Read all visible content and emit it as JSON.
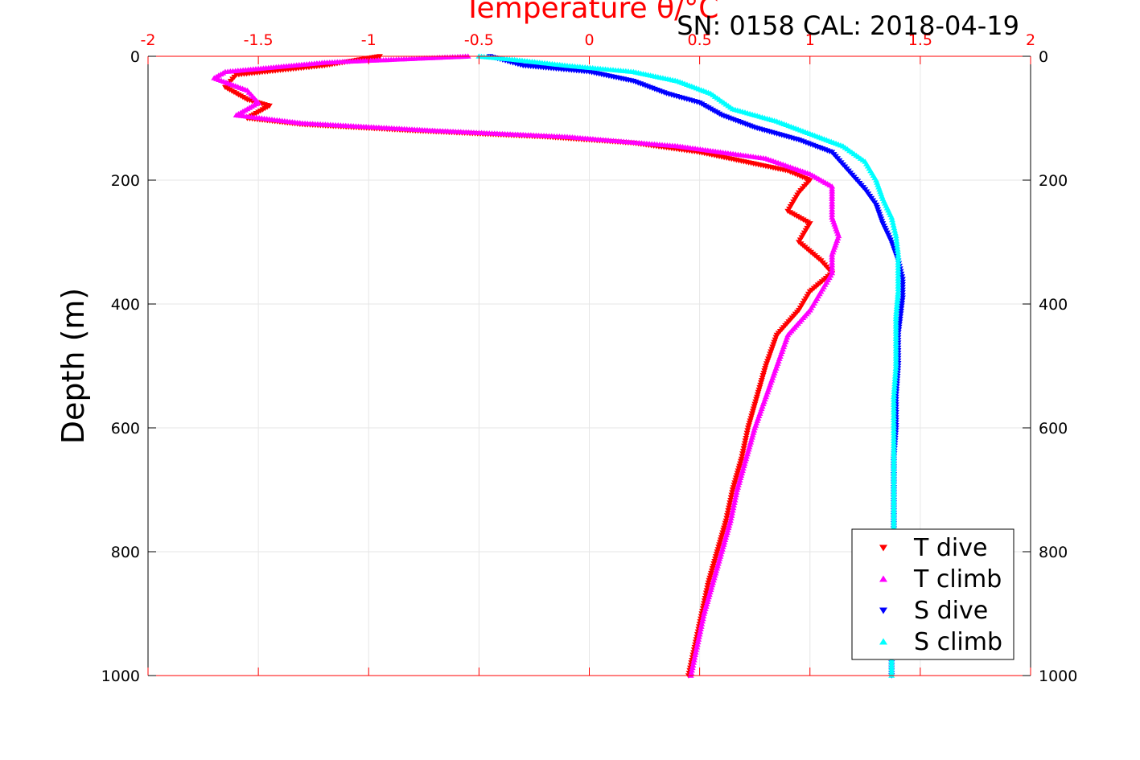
{
  "chart_data": {
    "type": "scatter",
    "title": "Temperature θ/°C",
    "info_text": "SN: 0158  CAL: 2018-04-19",
    "xlabel": "Temperature θ/°C",
    "ylabel": "Depth (m)",
    "xlim": [
      -2,
      2
    ],
    "ylim": [
      0,
      1000
    ],
    "y_reversed": true,
    "x_ticks": [
      "-2",
      "-1.5",
      "-1",
      "-0.5",
      "0",
      "0.5",
      "1",
      "1.5",
      "2"
    ],
    "y_ticks": [
      "0",
      "200",
      "400",
      "600",
      "800",
      "1000"
    ],
    "grid": true,
    "legend_position": "bottom-right",
    "colors": {
      "t_dive": "#ff0000",
      "t_climb": "#ff00ff",
      "s_dive": "#0000ff",
      "s_climb": "#00ffff",
      "axis_top": "#ff0000",
      "grid": "#e6e6e6"
    },
    "series": [
      {
        "name": "T dive",
        "marker": "triangle-down",
        "points": [
          [
            -0.95,
            0
          ],
          [
            -1.2,
            15
          ],
          [
            -1.6,
            30
          ],
          [
            -1.65,
            50
          ],
          [
            -1.55,
            70
          ],
          [
            -1.45,
            80
          ],
          [
            -1.55,
            100
          ],
          [
            -1.3,
            110
          ],
          [
            -0.8,
            120
          ],
          [
            -0.2,
            130
          ],
          [
            0.2,
            140
          ],
          [
            0.5,
            155
          ],
          [
            0.7,
            170
          ],
          [
            0.9,
            185
          ],
          [
            1.0,
            200
          ],
          [
            0.95,
            220
          ],
          [
            0.9,
            250
          ],
          [
            1.0,
            270
          ],
          [
            0.95,
            300
          ],
          [
            1.05,
            330
          ],
          [
            1.1,
            350
          ],
          [
            1.0,
            380
          ],
          [
            0.95,
            410
          ],
          [
            0.85,
            450
          ],
          [
            0.8,
            500
          ],
          [
            0.76,
            550
          ],
          [
            0.72,
            600
          ],
          [
            0.69,
            650
          ],
          [
            0.65,
            700
          ],
          [
            0.62,
            750
          ],
          [
            0.58,
            800
          ],
          [
            0.54,
            850
          ],
          [
            0.51,
            900
          ],
          [
            0.48,
            950
          ],
          [
            0.45,
            1000
          ]
        ]
      },
      {
        "name": "T climb",
        "marker": "triangle-up",
        "points": [
          [
            -0.55,
            0
          ],
          [
            -1.2,
            10
          ],
          [
            -1.65,
            25
          ],
          [
            -1.7,
            35
          ],
          [
            -1.55,
            55
          ],
          [
            -1.5,
            75
          ],
          [
            -1.6,
            95
          ],
          [
            -1.3,
            108
          ],
          [
            -0.7,
            120
          ],
          [
            -0.1,
            130
          ],
          [
            0.4,
            145
          ],
          [
            0.8,
            165
          ],
          [
            1.0,
            190
          ],
          [
            1.1,
            210
          ],
          [
            1.1,
            230
          ],
          [
            1.1,
            260
          ],
          [
            1.13,
            290
          ],
          [
            1.1,
            320
          ],
          [
            1.1,
            350
          ],
          [
            1.05,
            380
          ],
          [
            1.0,
            410
          ],
          [
            0.9,
            450
          ],
          [
            0.85,
            500
          ],
          [
            0.8,
            550
          ],
          [
            0.75,
            600
          ],
          [
            0.71,
            650
          ],
          [
            0.67,
            700
          ],
          [
            0.64,
            750
          ],
          [
            0.6,
            800
          ],
          [
            0.56,
            850
          ],
          [
            0.52,
            900
          ],
          [
            0.49,
            950
          ],
          [
            0.46,
            1000
          ]
        ]
      },
      {
        "name": "S dive",
        "marker": "triangle-down",
        "points": [
          [
            -0.45,
            0
          ],
          [
            -0.3,
            15
          ],
          [
            0.0,
            25
          ],
          [
            0.2,
            40
          ],
          [
            0.35,
            60
          ],
          [
            0.5,
            75
          ],
          [
            0.6,
            95
          ],
          [
            0.75,
            115
          ],
          [
            0.95,
            135
          ],
          [
            1.1,
            155
          ],
          [
            1.15,
            175
          ],
          [
            1.2,
            195
          ],
          [
            1.25,
            215
          ],
          [
            1.3,
            240
          ],
          [
            1.33,
            270
          ],
          [
            1.37,
            300
          ],
          [
            1.4,
            330
          ],
          [
            1.42,
            360
          ],
          [
            1.42,
            390
          ],
          [
            1.41,
            420
          ],
          [
            1.4,
            450
          ],
          [
            1.4,
            500
          ],
          [
            1.39,
            550
          ],
          [
            1.39,
            600
          ],
          [
            1.38,
            650
          ],
          [
            1.38,
            700
          ],
          [
            1.38,
            750
          ],
          [
            1.38,
            800
          ],
          [
            1.38,
            850
          ],
          [
            1.37,
            900
          ],
          [
            1.37,
            950
          ],
          [
            1.37,
            1000
          ]
        ]
      },
      {
        "name": "S climb",
        "marker": "triangle-up",
        "points": [
          [
            -0.5,
            0
          ],
          [
            -0.35,
            5
          ],
          [
            -0.1,
            15
          ],
          [
            0.2,
            25
          ],
          [
            0.4,
            40
          ],
          [
            0.55,
            60
          ],
          [
            0.65,
            85
          ],
          [
            0.85,
            105
          ],
          [
            1.0,
            125
          ],
          [
            1.15,
            145
          ],
          [
            1.25,
            170
          ],
          [
            1.3,
            200
          ],
          [
            1.33,
            230
          ],
          [
            1.37,
            260
          ],
          [
            1.39,
            290
          ],
          [
            1.4,
            320
          ],
          [
            1.4,
            350
          ],
          [
            1.4,
            380
          ],
          [
            1.39,
            420
          ],
          [
            1.39,
            460
          ],
          [
            1.39,
            500
          ],
          [
            1.38,
            550
          ],
          [
            1.38,
            600
          ],
          [
            1.38,
            650
          ],
          [
            1.38,
            700
          ],
          [
            1.38,
            750
          ],
          [
            1.38,
            800
          ],
          [
            1.38,
            850
          ],
          [
            1.37,
            900
          ],
          [
            1.37,
            950
          ],
          [
            1.37,
            1000
          ]
        ]
      }
    ]
  }
}
